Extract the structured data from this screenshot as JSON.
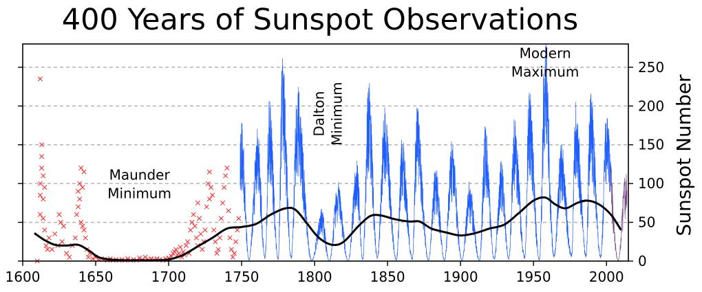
{
  "chart_data": {
    "type": "line",
    "title": "400 Years of Sunspot Observations",
    "xlabel": "",
    "ylabel": "Sunspot Number",
    "xlim": [
      1600,
      2015
    ],
    "ylim": [
      0,
      280
    ],
    "x_ticks": [
      1600,
      1650,
      1700,
      1750,
      1800,
      1850,
      1900,
      1950,
      2000
    ],
    "y_ticks": [
      0,
      50,
      100,
      150,
      200,
      250
    ],
    "y_axis_side": "right",
    "grid": "horizontal dashed",
    "colors": {
      "early_observations": "#ff2020",
      "monthly_sunspot_number": "#1f5fff",
      "recent_monthly": "#7a4a8c",
      "smoothed_trend": "#000000",
      "grid": "#b4b4b4"
    },
    "annotations": [
      {
        "lines": [
          "Maunder",
          "Minimum"
        ],
        "x": 1680,
        "y": 105
      },
      {
        "lines": [
          "Dalton",
          "Minimum"
        ],
        "x": 1810,
        "y": 190,
        "rotated": true
      },
      {
        "lines": [
          "Modern",
          "Maximum"
        ],
        "x": 1958,
        "y": 262
      }
    ],
    "early_observations": [
      {
        "x": 1610,
        "y": 0
      },
      {
        "x": 1612,
        "y": 60
      },
      {
        "x": 1612,
        "y": 85
      },
      {
        "x": 1612,
        "y": 100
      },
      {
        "x": 1612,
        "y": 235
      },
      {
        "x": 1613,
        "y": 120
      },
      {
        "x": 1613,
        "y": 135
      },
      {
        "x": 1613,
        "y": 150
      },
      {
        "x": 1614,
        "y": 110
      },
      {
        "x": 1614,
        "y": 80
      },
      {
        "x": 1614,
        "y": 55
      },
      {
        "x": 1615,
        "y": 95
      },
      {
        "x": 1615,
        "y": 40
      },
      {
        "x": 1616,
        "y": 20
      },
      {
        "x": 1617,
        "y": 15
      },
      {
        "x": 1618,
        "y": 30
      },
      {
        "x": 1620,
        "y": 15
      },
      {
        "x": 1622,
        "y": 35
      },
      {
        "x": 1624,
        "y": 20
      },
      {
        "x": 1625,
        "y": 60
      },
      {
        "x": 1626,
        "y": 50
      },
      {
        "x": 1627,
        "y": 25
      },
      {
        "x": 1628,
        "y": 45
      },
      {
        "x": 1630,
        "y": 10
      },
      {
        "x": 1632,
        "y": 5
      },
      {
        "x": 1634,
        "y": 20
      },
      {
        "x": 1636,
        "y": 30
      },
      {
        "x": 1637,
        "y": 60
      },
      {
        "x": 1638,
        "y": 90
      },
      {
        "x": 1638,
        "y": 70
      },
      {
        "x": 1639,
        "y": 100
      },
      {
        "x": 1639,
        "y": 80
      },
      {
        "x": 1640,
        "y": 120
      },
      {
        "x": 1640,
        "y": 50
      },
      {
        "x": 1641,
        "y": 95
      },
      {
        "x": 1641,
        "y": 45
      },
      {
        "x": 1642,
        "y": 115
      },
      {
        "x": 1642,
        "y": 40
      },
      {
        "x": 1643,
        "y": 30
      },
      {
        "x": 1644,
        "y": 15
      },
      {
        "x": 1645,
        "y": 5
      },
      {
        "x": 1646,
        "y": 10
      },
      {
        "x": 1648,
        "y": 3
      },
      {
        "x": 1650,
        "y": 5
      },
      {
        "x": 1652,
        "y": 2
      },
      {
        "x": 1654,
        "y": 3
      },
      {
        "x": 1656,
        "y": 2
      },
      {
        "x": 1658,
        "y": 1
      },
      {
        "x": 1660,
        "y": 3
      },
      {
        "x": 1662,
        "y": 1
      },
      {
        "x": 1664,
        "y": 2
      },
      {
        "x": 1666,
        "y": 1
      },
      {
        "x": 1668,
        "y": 2
      },
      {
        "x": 1670,
        "y": 1
      },
      {
        "x": 1672,
        "y": 3
      },
      {
        "x": 1674,
        "y": 1
      },
      {
        "x": 1676,
        "y": 2
      },
      {
        "x": 1678,
        "y": 1
      },
      {
        "x": 1680,
        "y": 4
      },
      {
        "x": 1682,
        "y": 2
      },
      {
        "x": 1684,
        "y": 5
      },
      {
        "x": 1686,
        "y": 2
      },
      {
        "x": 1688,
        "y": 3
      },
      {
        "x": 1690,
        "y": 2
      },
      {
        "x": 1692,
        "y": 3
      },
      {
        "x": 1694,
        "y": 2
      },
      {
        "x": 1696,
        "y": 1
      },
      {
        "x": 1698,
        "y": 3
      },
      {
        "x": 1700,
        "y": 4
      },
      {
        "x": 1702,
        "y": 6
      },
      {
        "x": 1703,
        "y": 10
      },
      {
        "x": 1704,
        "y": 12
      },
      {
        "x": 1705,
        "y": 15
      },
      {
        "x": 1706,
        "y": 8
      },
      {
        "x": 1707,
        "y": 10
      },
      {
        "x": 1708,
        "y": 18
      },
      {
        "x": 1709,
        "y": 5
      },
      {
        "x": 1710,
        "y": 12
      },
      {
        "x": 1711,
        "y": 8
      },
      {
        "x": 1712,
        "y": 20
      },
      {
        "x": 1713,
        "y": 25
      },
      {
        "x": 1714,
        "y": 10
      },
      {
        "x": 1715,
        "y": 40
      },
      {
        "x": 1716,
        "y": 50
      },
      {
        "x": 1717,
        "y": 60
      },
      {
        "x": 1718,
        "y": 45
      },
      {
        "x": 1719,
        "y": 30
      },
      {
        "x": 1720,
        "y": 75
      },
      {
        "x": 1720,
        "y": 20
      },
      {
        "x": 1721,
        "y": 55
      },
      {
        "x": 1722,
        "y": 35
      },
      {
        "x": 1723,
        "y": 15
      },
      {
        "x": 1724,
        "y": 25
      },
      {
        "x": 1725,
        "y": 40
      },
      {
        "x": 1726,
        "y": 70
      },
      {
        "x": 1727,
        "y": 100
      },
      {
        "x": 1728,
        "y": 80
      },
      {
        "x": 1728,
        "y": 115
      },
      {
        "x": 1729,
        "y": 95
      },
      {
        "x": 1730,
        "y": 85
      },
      {
        "x": 1731,
        "y": 40
      },
      {
        "x": 1732,
        "y": 25
      },
      {
        "x": 1733,
        "y": 10
      },
      {
        "x": 1734,
        "y": 15
      },
      {
        "x": 1735,
        "y": 30
      },
      {
        "x": 1736,
        "y": 55
      },
      {
        "x": 1737,
        "y": 75
      },
      {
        "x": 1738,
        "y": 95
      },
      {
        "x": 1739,
        "y": 110
      },
      {
        "x": 1740,
        "y": 120
      },
      {
        "x": 1741,
        "y": 65
      },
      {
        "x": 1742,
        "y": 30
      },
      {
        "x": 1743,
        "y": 15
      },
      {
        "x": 1744,
        "y": 5
      },
      {
        "x": 1745,
        "y": 10
      },
      {
        "x": 1746,
        "y": 25
      },
      {
        "x": 1747,
        "y": 40
      },
      {
        "x": 1748,
        "y": 55
      }
    ],
    "monthly_cycle_peaks": [
      {
        "x": 1750,
        "y": 160
      },
      {
        "x": 1761,
        "y": 150
      },
      {
        "x": 1769,
        "y": 185
      },
      {
        "x": 1778,
        "y": 238
      },
      {
        "x": 1788,
        "y": 200
      },
      {
        "x": 1805,
        "y": 60
      },
      {
        "x": 1816,
        "y": 90
      },
      {
        "x": 1829,
        "y": 120
      },
      {
        "x": 1837,
        "y": 205
      },
      {
        "x": 1848,
        "y": 180
      },
      {
        "x": 1860,
        "y": 140
      },
      {
        "x": 1870,
        "y": 180
      },
      {
        "x": 1883,
        "y": 110
      },
      {
        "x": 1894,
        "y": 135
      },
      {
        "x": 1906,
        "y": 90
      },
      {
        "x": 1917,
        "y": 155
      },
      {
        "x": 1928,
        "y": 115
      },
      {
        "x": 1937,
        "y": 165
      },
      {
        "x": 1947,
        "y": 200
      },
      {
        "x": 1958,
        "y": 255
      },
      {
        "x": 1969,
        "y": 135
      },
      {
        "x": 1979,
        "y": 190
      },
      {
        "x": 1989,
        "y": 200
      },
      {
        "x": 2000,
        "y": 170
      },
      {
        "x": 2013,
        "y": 100
      }
    ],
    "monthly_cycle_minima": [
      {
        "x": 1755,
        "y": 2
      },
      {
        "x": 1766,
        "y": 5
      },
      {
        "x": 1775,
        "y": 3
      },
      {
        "x": 1784,
        "y": 5
      },
      {
        "x": 1798,
        "y": 1
      },
      {
        "x": 1810,
        "y": 0
      },
      {
        "x": 1823,
        "y": 0
      },
      {
        "x": 1833,
        "y": 2
      },
      {
        "x": 1843,
        "y": 5
      },
      {
        "x": 1856,
        "y": 2
      },
      {
        "x": 1867,
        "y": 3
      },
      {
        "x": 1878,
        "y": 1
      },
      {
        "x": 1889,
        "y": 1
      },
      {
        "x": 1901,
        "y": 1
      },
      {
        "x": 1913,
        "y": 1
      },
      {
        "x": 1923,
        "y": 3
      },
      {
        "x": 1933,
        "y": 3
      },
      {
        "x": 1944,
        "y": 5
      },
      {
        "x": 1954,
        "y": 2
      },
      {
        "x": 1964,
        "y": 7
      },
      {
        "x": 1976,
        "y": 8
      },
      {
        "x": 1986,
        "y": 8
      },
      {
        "x": 1996,
        "y": 6
      },
      {
        "x": 2008,
        "y": 1
      }
    ],
    "smoothed_trend": [
      {
        "x": 1608,
        "y": 36
      },
      {
        "x": 1615,
        "y": 27
      },
      {
        "x": 1622,
        "y": 21
      },
      {
        "x": 1630,
        "y": 20
      },
      {
        "x": 1638,
        "y": 21
      },
      {
        "x": 1645,
        "y": 14
      },
      {
        "x": 1652,
        "y": 5
      },
      {
        "x": 1660,
        "y": 2
      },
      {
        "x": 1670,
        "y": 1
      },
      {
        "x": 1680,
        "y": 1
      },
      {
        "x": 1690,
        "y": 1
      },
      {
        "x": 1700,
        "y": 2
      },
      {
        "x": 1710,
        "y": 8
      },
      {
        "x": 1720,
        "y": 19
      },
      {
        "x": 1730,
        "y": 30
      },
      {
        "x": 1740,
        "y": 42
      },
      {
        "x": 1750,
        "y": 44
      },
      {
        "x": 1760,
        "y": 48
      },
      {
        "x": 1770,
        "y": 60
      },
      {
        "x": 1780,
        "y": 68
      },
      {
        "x": 1787,
        "y": 66
      },
      {
        "x": 1795,
        "y": 48
      },
      {
        "x": 1803,
        "y": 30
      },
      {
        "x": 1812,
        "y": 21
      },
      {
        "x": 1820,
        "y": 25
      },
      {
        "x": 1830,
        "y": 45
      },
      {
        "x": 1838,
        "y": 58
      },
      {
        "x": 1845,
        "y": 59
      },
      {
        "x": 1855,
        "y": 54
      },
      {
        "x": 1865,
        "y": 51
      },
      {
        "x": 1872,
        "y": 51
      },
      {
        "x": 1880,
        "y": 42
      },
      {
        "x": 1890,
        "y": 37
      },
      {
        "x": 1900,
        "y": 33
      },
      {
        "x": 1910,
        "y": 36
      },
      {
        "x": 1920,
        "y": 42
      },
      {
        "x": 1930,
        "y": 47
      },
      {
        "x": 1940,
        "y": 62
      },
      {
        "x": 1950,
        "y": 78
      },
      {
        "x": 1958,
        "y": 82
      },
      {
        "x": 1965,
        "y": 73
      },
      {
        "x": 1972,
        "y": 68
      },
      {
        "x": 1980,
        "y": 75
      },
      {
        "x": 1987,
        "y": 78
      },
      {
        "x": 1995,
        "y": 73
      },
      {
        "x": 2003,
        "y": 60
      },
      {
        "x": 2010,
        "y": 40
      }
    ]
  }
}
